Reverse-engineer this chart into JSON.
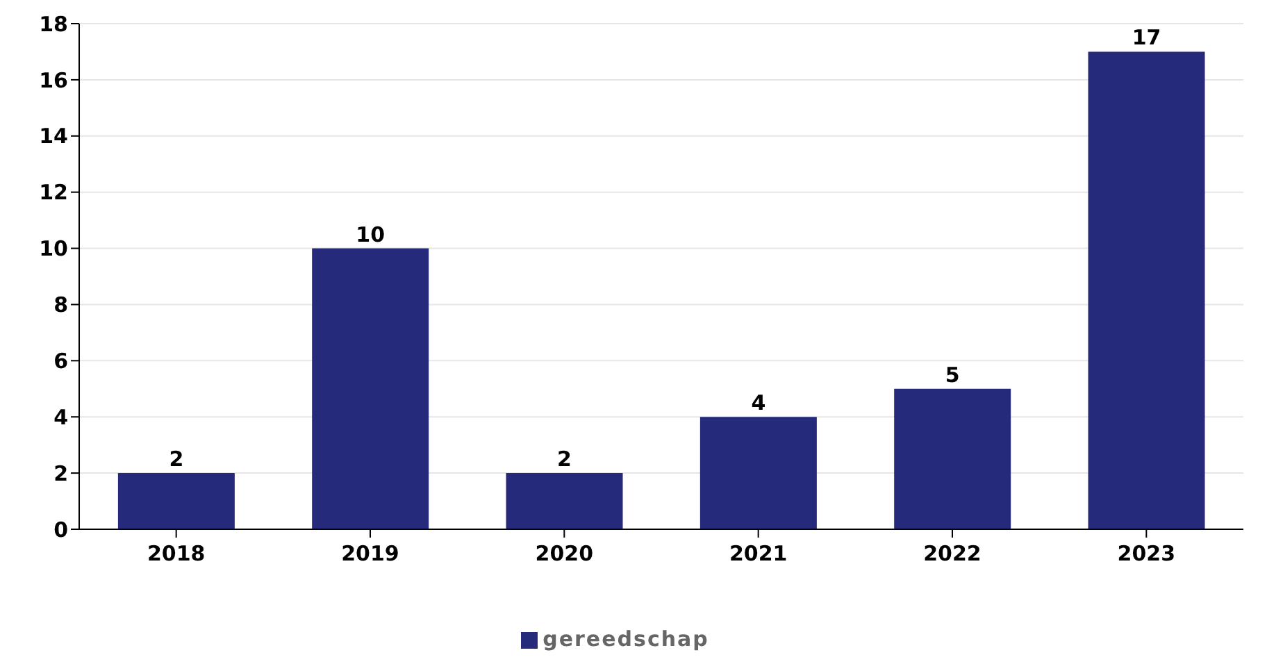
{
  "chart_data": {
    "type": "bar",
    "categories": [
      "2018",
      "2019",
      "2020",
      "2021",
      "2022",
      "2023"
    ],
    "series": [
      {
        "name": "gereedschap",
        "color": "#262a7a",
        "values": [
          2,
          10,
          2,
          4,
          5,
          17
        ]
      }
    ],
    "ylim": [
      0,
      18
    ],
    "yticks": [
      0,
      2,
      4,
      6,
      8,
      10,
      12,
      14,
      16,
      18
    ],
    "grid": "y",
    "legend": "bottom",
    "data_labels": true
  }
}
